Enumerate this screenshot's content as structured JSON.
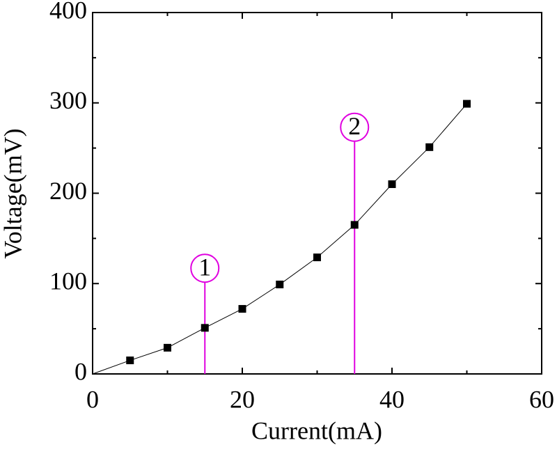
{
  "chart_data": {
    "type": "line",
    "xlabel": "Current(mA)",
    "ylabel": "Voltage(mV)",
    "xlim": [
      0,
      60
    ],
    "ylim": [
      0,
      400
    ],
    "xticks": [
      0,
      20,
      40,
      60
    ],
    "yticks": [
      0,
      100,
      200,
      300,
      400
    ],
    "xminorticks": [
      10,
      30,
      50
    ],
    "yminorticks": [
      50,
      150,
      250,
      350
    ],
    "series": [
      {
        "color": "#000000",
        "marker": "none",
        "x": [
          0,
          5,
          10,
          15,
          20,
          25,
          30,
          35,
          40,
          45,
          50
        ],
        "values": [
          0,
          15,
          29,
          51,
          72,
          99,
          129,
          165,
          210,
          251,
          299
        ]
      },
      {
        "color": "#000000",
        "marker": "square",
        "x": [
          5,
          10,
          15,
          20,
          25,
          30,
          35,
          40,
          45,
          50
        ],
        "values": [
          15,
          29,
          51,
          72,
          99,
          129,
          165,
          210,
          251,
          299
        ]
      }
    ],
    "annotations": [
      {
        "text": "1",
        "x": 15,
        "y": 117,
        "color": "#e000e0"
      },
      {
        "text": "2",
        "x": 35,
        "y": 273,
        "color": "#e000e0"
      }
    ]
  }
}
